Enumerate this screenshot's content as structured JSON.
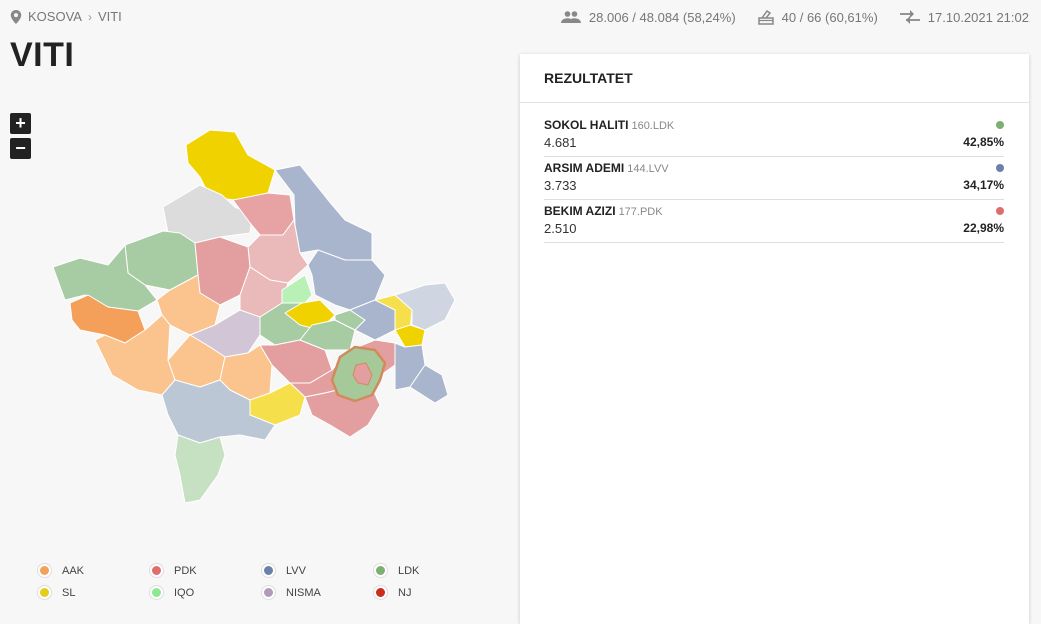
{
  "breadcrumb": {
    "root": "KOSOVA",
    "separator": "›",
    "current": "VITI"
  },
  "stats": {
    "voters": "28.006 / 48.084 (58,24%)",
    "stations": "40 / 66 (60,61%)",
    "updated": "17.10.2021 21:02"
  },
  "page_title": "VITI",
  "zoom": {
    "in": "+",
    "out": "−"
  },
  "panel": {
    "title": "REZULTATET",
    "results": [
      {
        "name": "SOKOL HALITI",
        "sub": "160.LDK",
        "votes": "4.681",
        "pct": "42,85%",
        "color": "#7cb072"
      },
      {
        "name": "ARSIM ADEMI",
        "sub": "144.LVV",
        "votes": "3.733",
        "pct": "34,17%",
        "color": "#6b82a8"
      },
      {
        "name": "BEKIM AZIZI",
        "sub": "177.PDK",
        "votes": "2.510",
        "pct": "22,98%",
        "color": "#de6e6e"
      }
    ]
  },
  "legend": [
    {
      "label": "AAK",
      "color": "#f5a05a"
    },
    {
      "label": "PDK",
      "color": "#de6e6e"
    },
    {
      "label": "LVV",
      "color": "#6b82a8"
    },
    {
      "label": "LDK",
      "color": "#7cb072"
    },
    {
      "label": "SL",
      "color": "#e8cc1c"
    },
    {
      "label": "IQO",
      "color": "#8ee88e"
    },
    {
      "label": "NISMA",
      "color": "#b09ab8"
    },
    {
      "label": "NJ",
      "color": "#cc2b1d"
    }
  ]
}
